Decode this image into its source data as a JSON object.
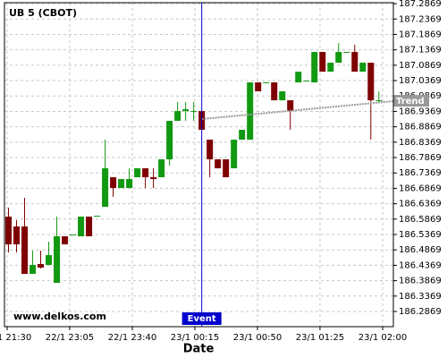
{
  "chart_data": {
    "type": "candlestick",
    "title": "UB 5 (CBOT)",
    "xlabel": "Date",
    "watermark": "www.delkos.com",
    "up_color": "#119911",
    "down_color": "#7f0000",
    "grid": true,
    "x": [
      0,
      1,
      2,
      3,
      4,
      5,
      6,
      7,
      8,
      9,
      10,
      11,
      12,
      13,
      14,
      15,
      16,
      17,
      18,
      19,
      20,
      21,
      22,
      23,
      24,
      25,
      26,
      27,
      28,
      29,
      30,
      31,
      32,
      33,
      34,
      35,
      36,
      37,
      38,
      39,
      40,
      41,
      42,
      43,
      44,
      45,
      46
    ],
    "open": [
      186.595,
      186.563,
      186.563,
      186.409,
      186.4409,
      186.438,
      186.3799,
      186.5311,
      186.5369,
      186.5311,
      186.595,
      186.5979,
      186.627,
      186.7229,
      186.688,
      186.688,
      186.7229,
      186.752,
      186.7229,
      186.7229,
      186.7811,
      186.9061,
      186.938,
      186.938,
      186.938,
      186.845,
      186.7811,
      186.7811,
      186.752,
      186.845,
      186.845,
      187.0311,
      187.0311,
      187.0311,
      186.9729,
      186.9729,
      187.0311,
      187.0369,
      187.0311,
      187.1299,
      187.0659,
      187.095,
      187.1299,
      187.1299,
      187.0659,
      187.095,
      186.9729
    ],
    "high": [
      186.6241,
      186.5834,
      186.6561,
      186.4845,
      186.4845,
      186.5136,
      186.595,
      186.5311,
      186.5369,
      186.595,
      186.595,
      186.5979,
      186.845,
      186.7229,
      186.7171,
      186.752,
      186.752,
      186.752,
      186.752,
      186.7811,
      186.9061,
      186.9671,
      186.9671,
      186.9671,
      186.938,
      186.845,
      186.7811,
      186.7811,
      186.845,
      186.877,
      187.0311,
      187.0311,
      187.0311,
      187.0311,
      187.002,
      186.9729,
      187.0659,
      187.0369,
      187.1299,
      187.1299,
      187.095,
      187.159,
      187.1299,
      187.1531,
      187.095,
      187.095,
      187.002
    ],
    "low": [
      186.4787,
      186.4787,
      186.409,
      186.409,
      186.4264,
      186.438,
      186.3799,
      186.5049,
      186.5369,
      186.5311,
      186.5311,
      186.5979,
      186.627,
      186.659,
      186.688,
      186.688,
      186.7229,
      186.688,
      186.688,
      186.7229,
      186.7607,
      186.9061,
      186.9061,
      186.9061,
      186.877,
      186.7229,
      186.752,
      186.7229,
      186.752,
      186.845,
      186.845,
      187.002,
      187.0311,
      186.9729,
      186.9729,
      186.877,
      187.0311,
      187.0369,
      187.0311,
      187.0659,
      187.0659,
      187.095,
      187.1299,
      187.0659,
      187.0659,
      186.845,
      186.9642
    ],
    "close": [
      186.5049,
      186.5049,
      186.409,
      186.438,
      186.4293,
      186.47,
      186.5311,
      186.5049,
      186.5369,
      186.595,
      186.5311,
      186.5979,
      186.752,
      186.688,
      186.7171,
      186.7171,
      186.752,
      186.7229,
      186.7171,
      186.7811,
      186.9061,
      186.938,
      186.9438,
      186.938,
      186.877,
      186.7811,
      186.752,
      186.7229,
      186.845,
      186.877,
      187.0311,
      187.002,
      187.0311,
      186.9729,
      187.002,
      186.938,
      187.0659,
      187.0369,
      187.1299,
      187.0659,
      187.095,
      187.1299,
      187.1299,
      187.0659,
      187.095,
      186.9729,
      186.9729
    ],
    "xlim": [
      -0.5,
      47.8
    ],
    "xticks": [
      {
        "value": -0.17,
        "label": "22/1 21:30"
      },
      {
        "value": 7.6,
        "label": "22/1 23:05"
      },
      {
        "value": 15.38,
        "label": "22/1 23:40"
      },
      {
        "value": 23.15,
        "label": "23/1 00:15"
      },
      {
        "value": 30.92,
        "label": "23/1 00:50"
      },
      {
        "value": 38.69,
        "label": "23/1 01:25"
      },
      {
        "value": 46.47,
        "label": "23/1 02:00"
      }
    ],
    "ylim": [
      186.2375,
      187.29
    ],
    "yticks": [
      186.2869,
      186.3369,
      186.3869,
      186.4369,
      186.4869,
      186.5369,
      186.5869,
      186.6369,
      186.6869,
      186.7369,
      186.7869,
      186.8369,
      186.8869,
      186.9369,
      186.9869,
      187.0369,
      187.0869,
      187.1369,
      187.1869,
      187.2369,
      187.2869
    ],
    "event": {
      "x": 24,
      "label": "Event",
      "color": "#0000cc"
    },
    "trend": {
      "x": [
        24,
        47.8
      ],
      "values": [
        186.912,
        186.97
      ],
      "label": "Trend",
      "color": "#999999"
    }
  }
}
